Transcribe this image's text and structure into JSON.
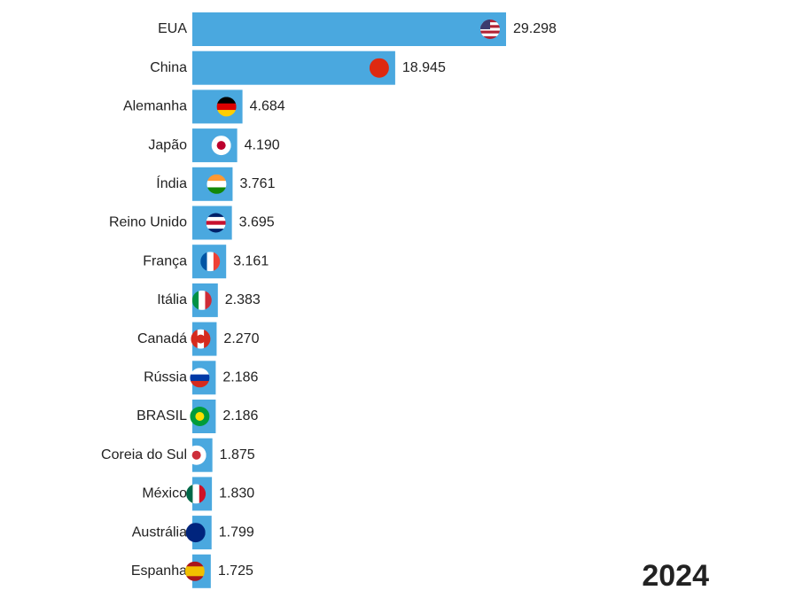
{
  "chart_data": {
    "type": "bar",
    "orientation": "horizontal",
    "color": "#4aa8df",
    "categories": [
      "EUA",
      "China",
      "Alemanha",
      "Japão",
      "Índia",
      "Reino Unido",
      "França",
      "Itália",
      "Canadá",
      "Rússia",
      "BRASIL",
      "Coreia do Sul",
      "México",
      "Austrália",
      "Espanha"
    ],
    "values": [
      29298,
      18945,
      4684,
      4190,
      3761,
      3695,
      3161,
      2383,
      2270,
      2186,
      2186,
      1875,
      1830,
      1799,
      1725
    ],
    "value_labels": [
      "29.298",
      "18.945",
      "4.684",
      "4.190",
      "3.761",
      "3.695",
      "3.161",
      "2.383",
      "2.270",
      "2.186",
      "2.186",
      "1.875",
      "1.830",
      "1.799",
      "1.725"
    ],
    "annotation": "2024"
  }
}
